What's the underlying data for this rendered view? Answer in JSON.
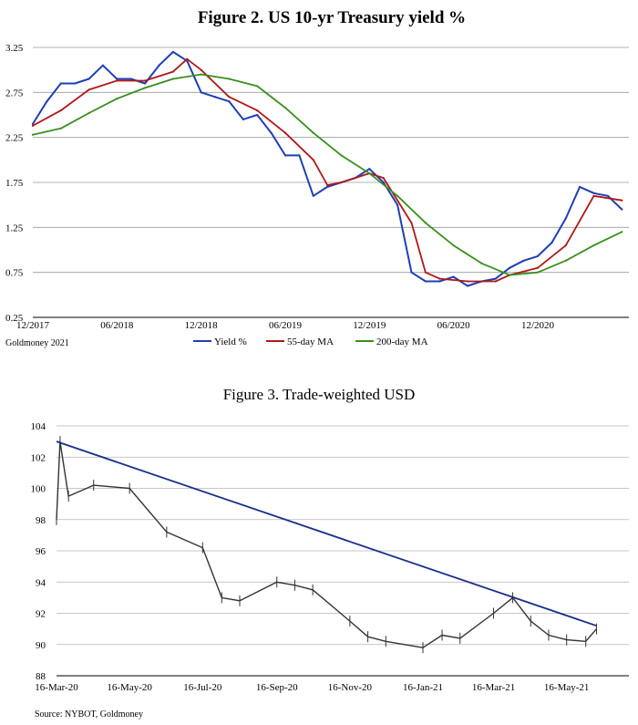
{
  "chart_data": [
    {
      "type": "line",
      "title": "Figure 2. US 10-yr Treasury yield %",
      "source": "Goldmoney 2021",
      "ylim": [
        0.25,
        3.25
      ],
      "yticks": [
        "3.25",
        "2.75",
        "2.25",
        "1.75",
        "1.25",
        "0.75",
        "0.25"
      ],
      "xticks": [
        "12/2017",
        "06/2018",
        "12/2018",
        "06/2019",
        "12/2019",
        "06/2020",
        "12/2020"
      ],
      "grid": true,
      "legend_position": "bottom",
      "colors": {
        "Yield %": "#1f3fb4",
        "55-day MA": "#b01818",
        "200-day MA": "#3a8f1e"
      },
      "series": [
        {
          "name": "Yield %",
          "x": [
            "12/2017",
            "01/2018",
            "02/2018",
            "03/2018",
            "04/2018",
            "05/2018",
            "06/2018",
            "07/2018",
            "08/2018",
            "09/2018",
            "10/2018",
            "11/2018",
            "12/2018",
            "01/2019",
            "02/2019",
            "03/2019",
            "04/2019",
            "05/2019",
            "06/2019",
            "07/2019",
            "08/2019",
            "09/2019",
            "10/2019",
            "11/2019",
            "12/2019",
            "01/2020",
            "02/2020",
            "03/2020",
            "04/2020",
            "05/2020",
            "06/2020",
            "07/2020",
            "08/2020",
            "09/2020",
            "10/2020",
            "11/2020",
            "12/2020",
            "01/2021",
            "02/2021",
            "03/2021",
            "04/2021",
            "05/2021",
            "06/2021"
          ],
          "values": [
            2.4,
            2.65,
            2.85,
            2.85,
            2.9,
            3.05,
            2.9,
            2.9,
            2.85,
            3.05,
            3.2,
            3.1,
            2.75,
            2.7,
            2.65,
            2.45,
            2.5,
            2.3,
            2.05,
            2.05,
            1.6,
            1.7,
            1.75,
            1.8,
            1.9,
            1.75,
            1.5,
            0.75,
            0.65,
            0.65,
            0.7,
            0.6,
            0.65,
            0.68,
            0.8,
            0.88,
            0.93,
            1.08,
            1.35,
            1.7,
            1.63,
            1.6,
            1.45
          ]
        },
        {
          "name": "55-day MA",
          "x": [
            "12/2017",
            "02/2018",
            "04/2018",
            "06/2018",
            "08/2018",
            "10/2018",
            "11/2018",
            "12/2018",
            "02/2019",
            "04/2019",
            "06/2019",
            "08/2019",
            "09/2019",
            "10/2019",
            "12/2019",
            "01/2020",
            "03/2020",
            "04/2020",
            "05/2020",
            "07/2020",
            "09/2020",
            "10/2020",
            "12/2020",
            "02/2021",
            "04/2021",
            "06/2021"
          ],
          "values": [
            2.38,
            2.55,
            2.78,
            2.88,
            2.88,
            2.98,
            3.12,
            3.0,
            2.7,
            2.55,
            2.3,
            2.0,
            1.72,
            1.75,
            1.85,
            1.8,
            1.3,
            0.75,
            0.68,
            0.65,
            0.65,
            0.72,
            0.8,
            1.05,
            1.6,
            1.55
          ]
        },
        {
          "name": "200-day MA",
          "x": [
            "12/2017",
            "02/2018",
            "04/2018",
            "06/2018",
            "08/2018",
            "10/2018",
            "12/2018",
            "02/2019",
            "04/2019",
            "06/2019",
            "08/2019",
            "10/2019",
            "12/2019",
            "02/2020",
            "04/2020",
            "06/2020",
            "08/2020",
            "10/2020",
            "12/2020",
            "02/2021",
            "04/2021",
            "06/2021"
          ],
          "values": [
            2.28,
            2.35,
            2.52,
            2.68,
            2.8,
            2.9,
            2.95,
            2.9,
            2.82,
            2.58,
            2.3,
            2.05,
            1.85,
            1.6,
            1.3,
            1.05,
            0.85,
            0.72,
            0.75,
            0.88,
            1.05,
            1.2
          ]
        }
      ]
    },
    {
      "type": "line",
      "title": "Figure 3. Trade-weighted USD",
      "source": "Source: NYBOT, Goldmoney",
      "ylim": [
        88,
        104
      ],
      "yticks": [
        "104",
        "102",
        "100",
        "98",
        "96",
        "94",
        "92",
        "90",
        "88"
      ],
      "xticks": [
        "16-Mar-20",
        "16-May-20",
        "16-Jul-20",
        "16-Sep-20",
        "16-Nov-20",
        "16-Jan-21",
        "16-Mar-21",
        "16-May-21"
      ],
      "grid": true,
      "colors": {
        "price": "#333333",
        "trend": "#1a2f8a"
      },
      "series": [
        {
          "name": "",
          "x": [
            "16-Mar-20",
            "19-Mar-20",
            "26-Mar-20",
            "16-Apr-20",
            "16-May-20",
            "16-Jun-20",
            "16-Jul-20",
            "1-Aug-20",
            "16-Aug-20",
            "16-Sep-20",
            "1-Oct-20",
            "16-Oct-20",
            "16-Nov-20",
            "1-Dec-20",
            "16-Dec-20",
            "16-Jan-21",
            "1-Feb-21",
            "16-Feb-21",
            "16-Mar-21",
            "1-Apr-21",
            "16-Apr-21",
            "1-May-21",
            "16-May-21",
            "1-Jun-21",
            "10-Jun-21"
          ],
          "values": [
            98.0,
            103.0,
            99.5,
            100.2,
            100.0,
            97.2,
            96.2,
            93.0,
            92.8,
            94.0,
            93.8,
            93.5,
            91.5,
            90.5,
            90.2,
            89.8,
            90.6,
            90.4,
            92.0,
            93.0,
            91.5,
            90.6,
            90.3,
            90.2,
            91.0
          ]
        }
      ],
      "trendline": {
        "x": [
          "16-Mar-20",
          "10-Jun-21"
        ],
        "values": [
          103.0,
          91.2
        ]
      }
    }
  ],
  "legend": {
    "yield": "Yield %",
    "ma55": "55-day MA",
    "ma200": "200-day MA"
  }
}
